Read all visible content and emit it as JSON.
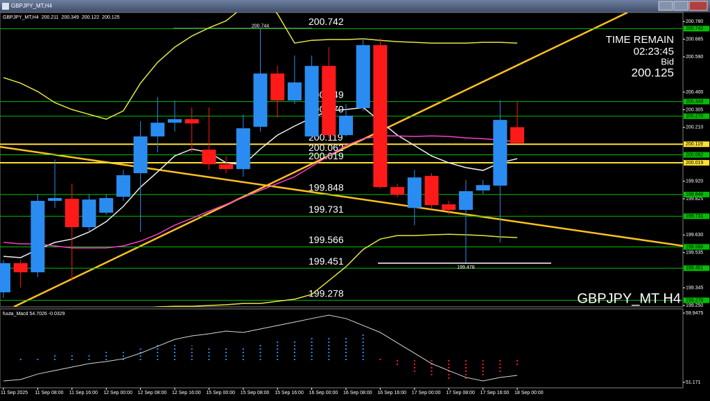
{
  "window_title": "GBPJPY_MT,H4",
  "chart_data": {
    "type": "candlestick",
    "symbol_label": "GBPJPY_MT,H4",
    "ohlc_header": [
      200.211,
      200.349,
      200.122,
      200.125
    ],
    "categories": [
      "11 Sep 2025",
      null,
      "11 Sep 08:00",
      null,
      "11 Sep 16:00",
      null,
      "12 Sep 00:00",
      null,
      "12 Sep 08:00",
      null,
      "12 Sep 16:00",
      null,
      "15 Sep 00:00",
      null,
      "15 Sep 08:00",
      null,
      "15 Sep 16:00",
      null,
      "16 Sep 00:00",
      null,
      "16 Sep 08:00",
      null,
      "16 Sep 16:00",
      null,
      "17 Sep 00:00",
      null,
      "17 Sep 08:00",
      null,
      "17 Sep 16:00",
      null,
      "18 Sep 00:00"
    ],
    "open": [
      199.321,
      199.478,
      199.429,
      199.814,
      199.825,
      199.672,
      199.75,
      199.836,
      199.963,
      200.161,
      200.235,
      200.254,
      200.09,
      200.011,
      199.985,
      200.213,
      200.5,
      200.355,
      200.161,
      200.541,
      200.168,
      200.314,
      200.653,
      199.888,
      199.776,
      199.948,
      199.795,
      199.765,
      199.87,
      199.896,
      200.211
    ],
    "high": [
      199.496,
      199.496,
      199.851,
      200.037,
      199.907,
      199.851,
      199.851,
      199.981,
      200.243,
      200.373,
      200.355,
      200.317,
      200.317,
      200.056,
      200.28,
      200.744,
      200.541,
      200.597,
      200.597,
      200.642,
      200.336,
      200.69,
      200.69,
      199.907,
      199.981,
      199.963,
      199.814,
      199.926,
      199.926,
      200.355,
      200.349
    ],
    "low": [
      199.291,
      199.347,
      199.403,
      199.776,
      199.384,
      199.646,
      199.739,
      199.814,
      199.646,
      200.075,
      200.187,
      200.075,
      199.981,
      199.963,
      199.944,
      200.187,
      200.261,
      200.336,
      200.149,
      200.149,
      200.161,
      200.299,
      199.881,
      199.832,
      199.683,
      199.776,
      199.739,
      199.478,
      199.851,
      199.59,
      200.122
    ],
    "close": [
      199.478,
      199.429,
      199.814,
      199.829,
      199.672,
      199.821,
      199.829,
      199.952,
      200.161,
      200.235,
      200.254,
      200.231,
      200.011,
      199.985,
      200.205,
      200.5,
      200.355,
      200.452,
      200.541,
      200.168,
      200.273,
      200.653,
      199.888,
      199.847,
      199.94,
      199.791,
      199.765,
      199.866,
      199.899,
      200.25,
      200.125
    ],
    "bull_color": "#2a8cf0",
    "bear_color": "#ff1a1a",
    "ylim": [
      199.243,
      200.829
    ],
    "yticks": [
      {
        "value": 200.78,
        "label": "200.780"
      },
      200.685,
      {
        "value": 200.59,
        "label": "200.590"
      },
      {
        "value": 200.4,
        "label": "200.400"
      },
      200.305,
      {
        "value": 200.21,
        "label": "200.210"
      },
      {
        "value": 199.92,
        "label": "199.920"
      },
      199.825,
      {
        "value": 199.63,
        "label": "199.630"
      },
      199.535,
      199.345,
      {
        "value": 199.25,
        "label": "199.250"
      }
    ],
    "levels": [
      {
        "value": 200.742,
        "label": "200.742",
        "color": "#00c000"
      },
      {
        "value": 200.349,
        "label": "200.349",
        "color": "#00c000"
      },
      {
        "value": 200.27,
        "label": "200.270",
        "color": "#00c000"
      },
      {
        "value": 200.119,
        "label": "200.119",
        "color": "#ffe030"
      },
      {
        "value": 200.062,
        "label": "200.062",
        "color": "#00c000"
      },
      {
        "value": 200.019,
        "label": "200.019",
        "color": "#ffe030"
      },
      {
        "value": 199.848,
        "label": "199.848",
        "color": "#00c000"
      },
      {
        "value": 199.731,
        "label": "199.731",
        "color": "#00c000"
      },
      {
        "value": 199.566,
        "label": "199.566",
        "color": "#00c000"
      },
      {
        "value": 199.451,
        "label": "199.451",
        "color": "#00c000"
      },
      {
        "value": 199.278,
        "label": "199.278",
        "color": "#00c000"
      }
    ],
    "indicators": [
      {
        "color": "#e6e640",
        "values": [
          200.478,
          200.448,
          200.403,
          200.343,
          200.306,
          200.28,
          200.254,
          200.299,
          200.448,
          200.56,
          200.642,
          200.702,
          200.746,
          200.784,
          200.858,
          200.914,
          200.821,
          200.664,
          200.679,
          200.683,
          200.683,
          200.687,
          200.679,
          200.672,
          200.668,
          200.664,
          200.664,
          200.664,
          200.668,
          200.668,
          200.664
        ]
      },
      {
        "color": "#e6e640",
        "values": [
          199.179,
          199.179,
          199.198,
          199.198,
          199.198,
          199.217,
          199.224,
          199.235,
          199.235,
          199.243,
          199.246,
          199.246,
          199.25,
          199.254,
          199.261,
          199.261,
          199.273,
          199.284,
          199.31,
          199.384,
          199.459,
          199.552,
          199.608,
          199.627,
          199.627,
          199.631,
          199.634,
          199.631,
          199.627,
          199.62,
          199.616
        ]
      },
      {
        "color": "#f0f0f0",
        "values": [
          199.515,
          199.508,
          199.552,
          199.59,
          199.608,
          199.646,
          199.702,
          199.784,
          199.888,
          199.97,
          200.056,
          200.093,
          200.075,
          200.019,
          200.008,
          200.093,
          200.168,
          200.217,
          200.261,
          200.299,
          200.306,
          200.317,
          200.243,
          200.168,
          200.112,
          200.056,
          200.019,
          199.993,
          199.978,
          200.019,
          200.041
        ]
      },
      {
        "color": "#ff3cc8",
        "values": [
          199.59,
          199.582,
          199.582,
          199.571,
          199.56,
          199.56,
          199.56,
          199.571,
          199.597,
          199.634,
          199.683,
          199.72,
          199.758,
          199.795,
          199.832,
          199.87,
          199.907,
          199.944,
          200.0,
          200.056,
          200.112,
          200.149,
          200.164,
          200.164,
          200.161,
          200.164,
          200.161,
          200.153,
          200.149,
          200.142,
          200.131
        ]
      }
    ],
    "high_marker": {
      "index": 15,
      "value": 200.744
    },
    "low_marker": {
      "index": 27,
      "value": 199.478
    },
    "info": {
      "title": "TIME REMAIN",
      "time": "02:23:45",
      "bid_label": "Bid",
      "bid": 200.125
    },
    "watermark": "GBPJPY_MT H4",
    "macd": {
      "title": "fuuta_Macd 54.7026 -0.0329",
      "ylim": [
        50.469,
        60.474
      ],
      "yticks": [
        59.9475,
        51.171
      ],
      "histogram": [
        53.98,
        54.15,
        54.42,
        54.59,
        54.68,
        54.86,
        55.03,
        55.3,
        55.73,
        56.0,
        56.0,
        55.82,
        55.73,
        55.56,
        55.73,
        56.17,
        56.44,
        56.61,
        56.79,
        56.88,
        56.79,
        57.49,
        54.15,
        53.1,
        52.22,
        51.79,
        51.35,
        51.52,
        51.79,
        52.22,
        53.1
      ],
      "histogram_colors": [
        "#2a8cf0",
        "#2a8cf0",
        "#2a8cf0",
        "#2a8cf0",
        "#2a8cf0",
        "#2a8cf0",
        "#2a8cf0",
        "#2a8cf0",
        "#2a8cf0",
        "#2a8cf0",
        "#2a8cf0",
        "#2a8cf0",
        "#2a8cf0",
        "#2a8cf0",
        "#2a8cf0",
        "#2a8cf0",
        "#2a8cf0",
        "#2a8cf0",
        "#2a8cf0",
        "#2a8cf0",
        "#2a8cf0",
        "#2a8cf0",
        "#ff1a1a",
        "#ff1a1a",
        "#ff1a1a",
        "#ff1a1a",
        "#ff1a1a",
        "#ff1a1a",
        "#ff1a1a",
        "#ff1a1a",
        "#ff1a1a"
      ],
      "signal": [
        51.35,
        51.52,
        52.22,
        52.66,
        53.1,
        53.54,
        53.8,
        54.15,
        54.86,
        55.73,
        56.61,
        57.05,
        57.31,
        57.67,
        57.49,
        57.93,
        58.37,
        58.81,
        59.25,
        59.68,
        59.25,
        58.37,
        57.49,
        56.17,
        54.86,
        53.54,
        52.66,
        51.79,
        51.35,
        51.79,
        52.05
      ],
      "signal_color": "#d8d8d8"
    }
  }
}
